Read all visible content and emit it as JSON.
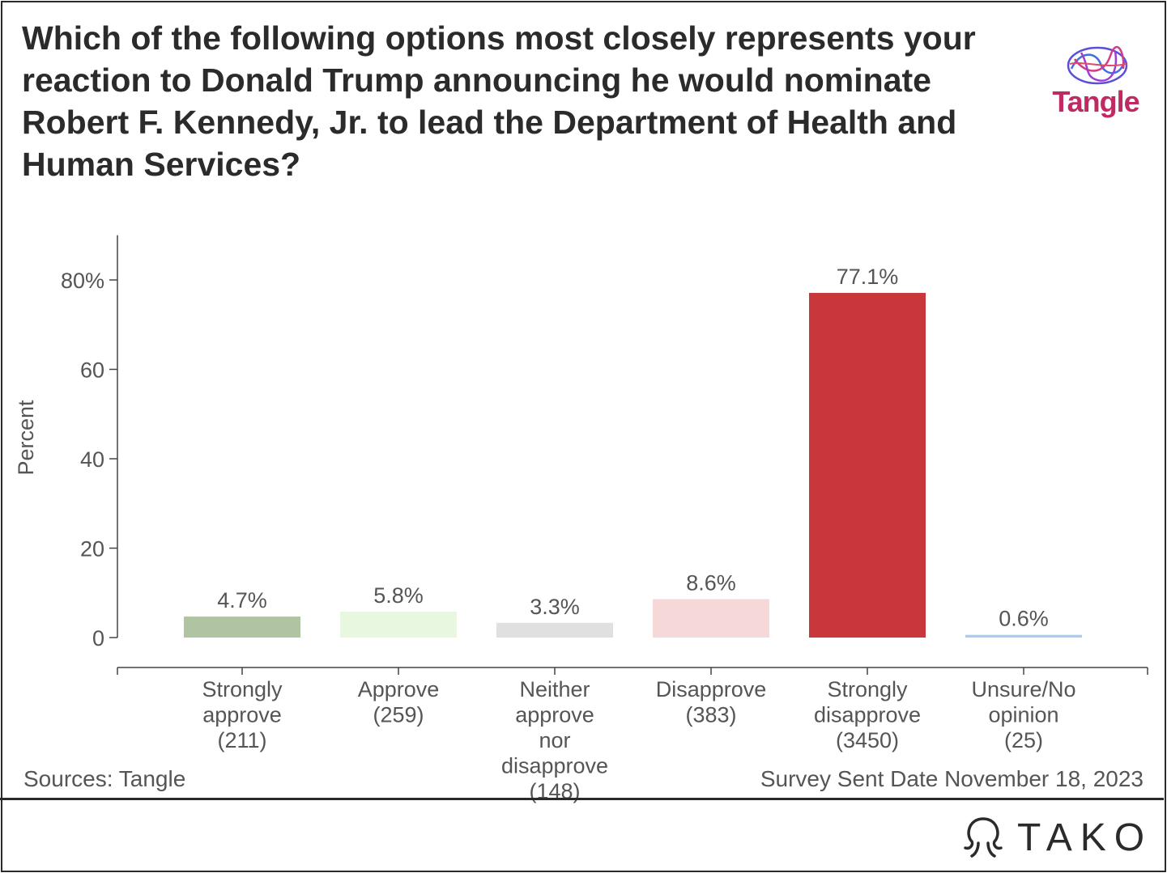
{
  "title": "Which of the following options most closely represents your reaction to Donald Trump announcing he would nominate Robert F. Kennedy, Jr. to lead the Department of Health and Human Services?",
  "logo_text": "Tangle",
  "source": "Sources: Tangle",
  "date_note": "Survey Sent Date November 18, 2023",
  "brand": "TAKO",
  "chart_data": {
    "type": "bar",
    "title": "Which of the following options most closely represents your reaction to Donald Trump announcing he would nominate Robert F. Kennedy, Jr. to lead the Department of Health and Human Services?",
    "ylabel": "Percent",
    "ylim": [
      0,
      90
    ],
    "yticks": [
      {
        "value": 0,
        "label": "0"
      },
      {
        "value": 20,
        "label": "20"
      },
      {
        "value": 40,
        "label": "40"
      },
      {
        "value": 60,
        "label": "60"
      },
      {
        "value": 80,
        "label": "80%"
      }
    ],
    "categories": [
      {
        "lines": [
          "Strongly",
          "approve",
          "(211)"
        ]
      },
      {
        "lines": [
          "Approve",
          "(259)"
        ]
      },
      {
        "lines": [
          "Neither",
          "approve",
          "nor",
          "disapprove",
          "(148)"
        ]
      },
      {
        "lines": [
          "Disapprove",
          "(383)"
        ]
      },
      {
        "lines": [
          "Strongly",
          "disapprove",
          "(3450)"
        ]
      },
      {
        "lines": [
          "Unsure/No",
          "opinion",
          "(25)"
        ]
      }
    ],
    "values": [
      4.7,
      5.8,
      3.3,
      8.6,
      77.1,
      0.6
    ],
    "data_labels": [
      "4.7%",
      "5.8%",
      "3.3%",
      "8.6%",
      "77.1%",
      "0.6%"
    ],
    "colors": [
      "#b0c4a2",
      "#e8f7df",
      "#e0e0e0",
      "#f6d8d8",
      "#c9373a",
      "#a9cdef"
    ],
    "grid": false
  }
}
